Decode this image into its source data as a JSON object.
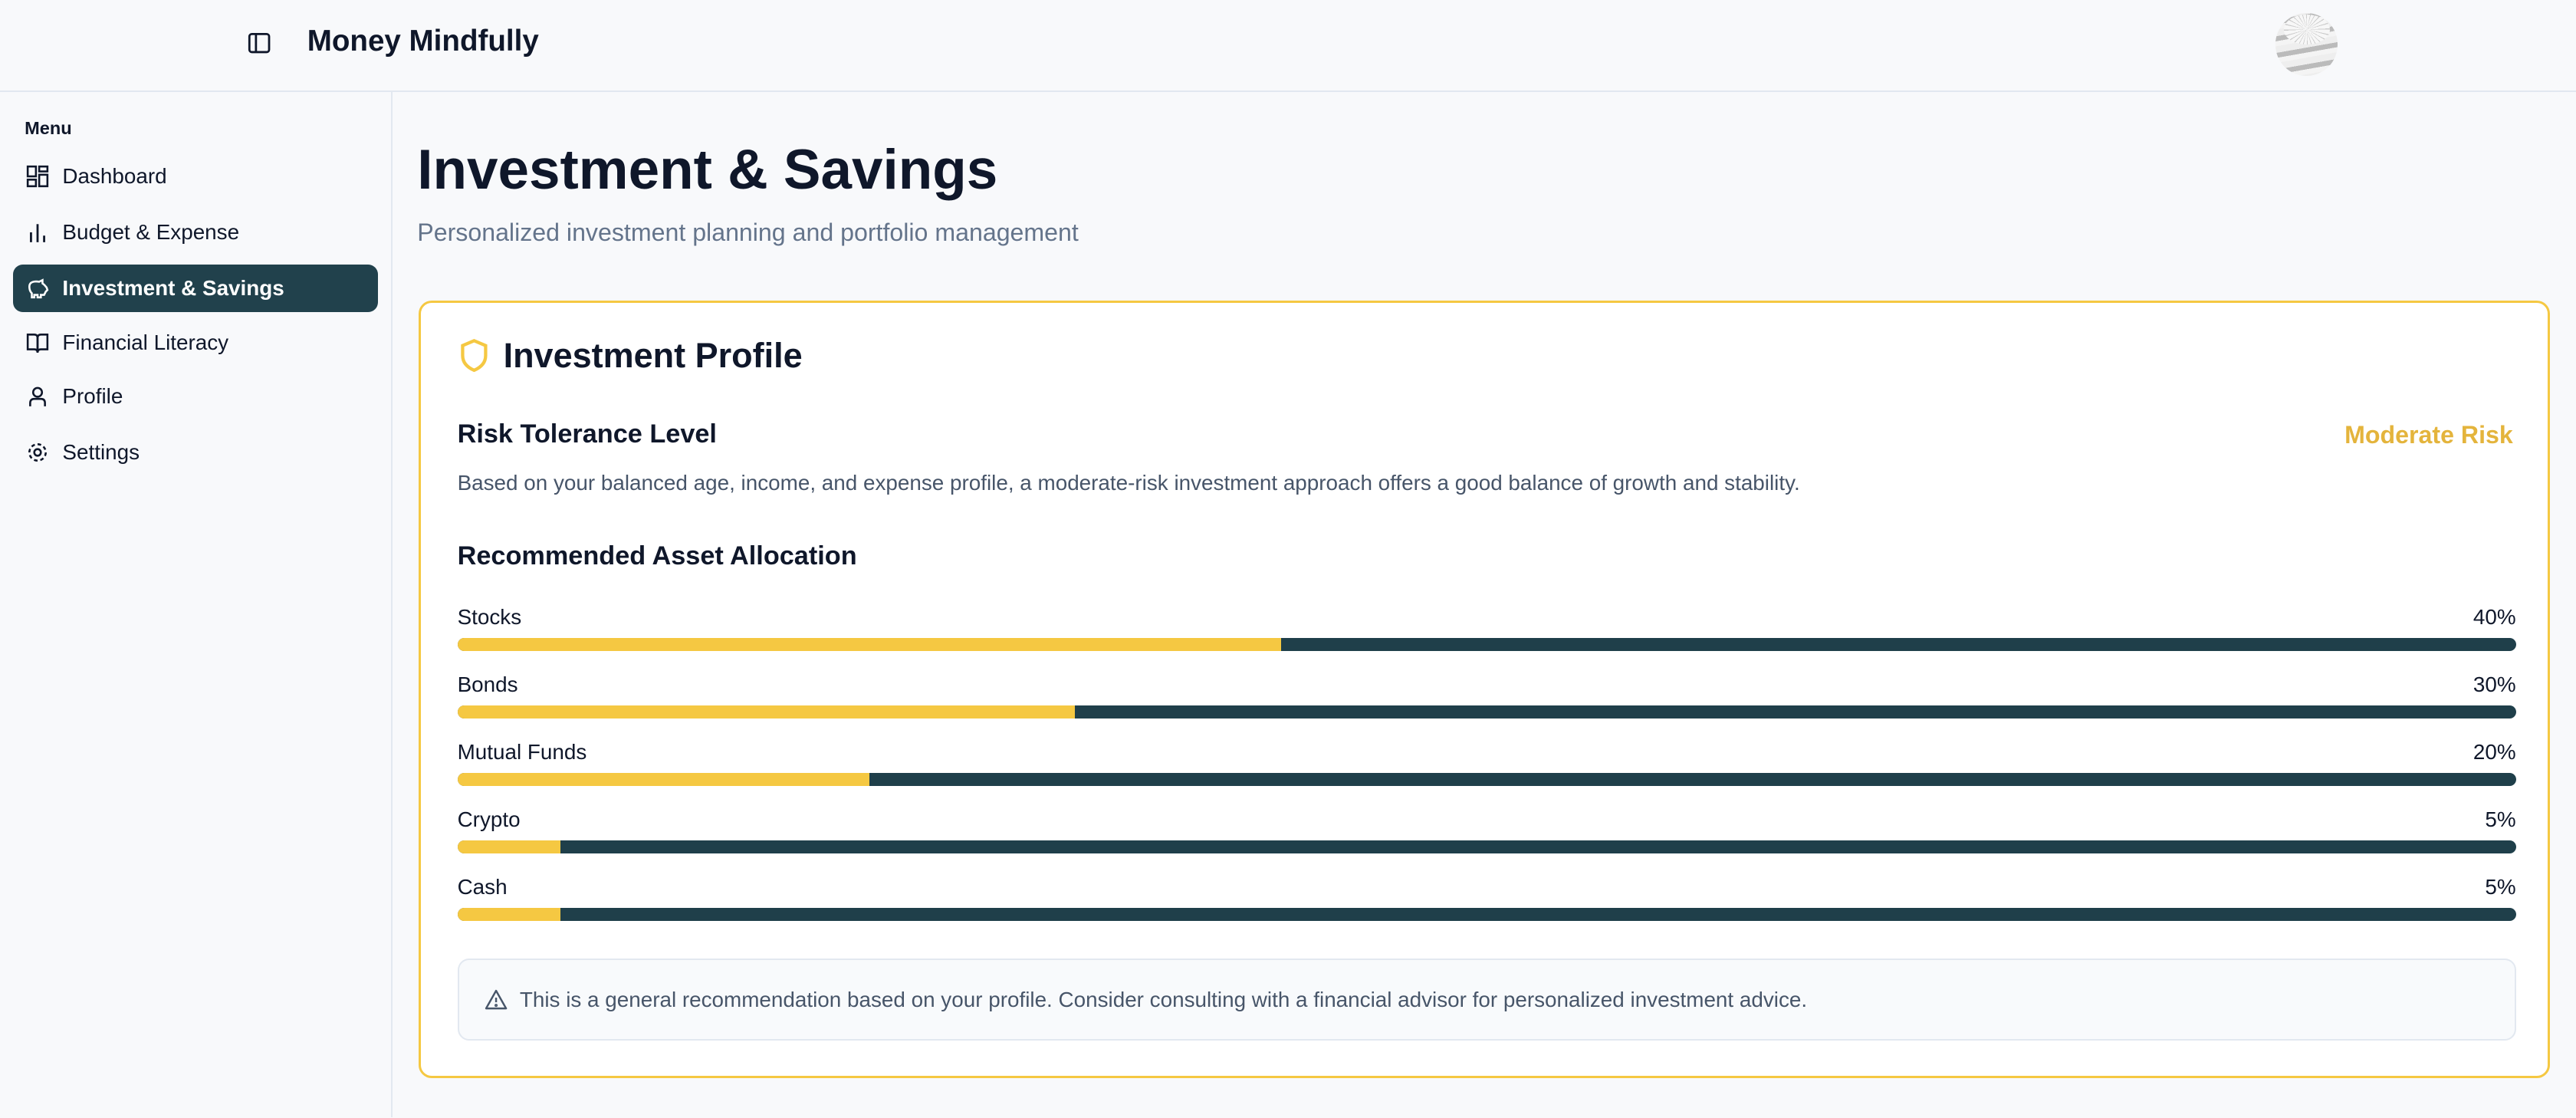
{
  "header": {
    "title": "Money Mindfully",
    "toggle_icon": "sidebar-toggle-icon",
    "avatar": "user-avatar"
  },
  "sidebar": {
    "menu_label": "Menu",
    "items": [
      {
        "label": "Dashboard",
        "icon": "dashboard-icon",
        "active": false
      },
      {
        "label": "Budget & Expense",
        "icon": "bar-chart-icon",
        "active": false
      },
      {
        "label": "Investment & Savings",
        "icon": "piggy-bank-icon",
        "active": true
      },
      {
        "label": "Financial Literacy",
        "icon": "book-icon",
        "active": false
      },
      {
        "label": "Profile",
        "icon": "user-icon",
        "active": false
      },
      {
        "label": "Settings",
        "icon": "gear-icon",
        "active": false
      }
    ]
  },
  "main": {
    "title": "Investment & Savings",
    "subtitle": "Personalized investment planning and portfolio management",
    "card": {
      "title": "Investment Profile",
      "risk_heading": "Risk Tolerance Level",
      "risk_level": "Moderate Risk",
      "risk_description": "Based on your balanced age, income, and expense profile, a moderate-risk investment approach offers a good balance of growth and stability.",
      "allocation_heading": "Recommended Asset Allocation",
      "allocations": [
        {
          "label": "Stocks",
          "percent": 40,
          "display": "40%"
        },
        {
          "label": "Bonds",
          "percent": 30,
          "display": "30%"
        },
        {
          "label": "Mutual Funds",
          "percent": 20,
          "display": "20%"
        },
        {
          "label": "Crypto",
          "percent": 5,
          "display": "5%"
        },
        {
          "label": "Cash",
          "percent": 5,
          "display": "5%"
        }
      ],
      "disclaimer": "This is a general recommendation based on your profile. Consider consulting with a financial advisor for personalized investment advice."
    }
  },
  "colors": {
    "accent": "#f5c842",
    "primary": "#21414c",
    "risk": "#e4b43c",
    "muted": "#64748b"
  }
}
